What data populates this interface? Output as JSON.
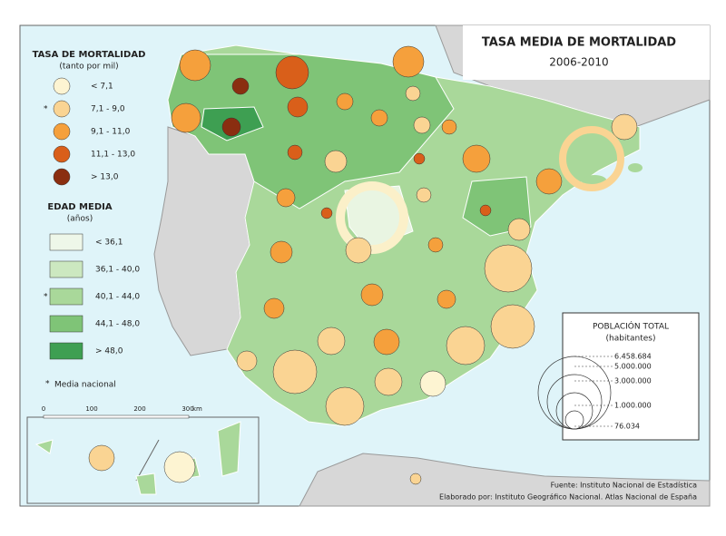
{
  "header": {
    "title": "TASA MEDIA DE MORTALIDAD",
    "period": "2006-2010"
  },
  "mortality_legend": {
    "title": "TASA DE MORTALIDAD",
    "unit": "(tanto por mil)",
    "national_mark": "*",
    "items": [
      "< 7,1",
      "7,1 - 9,0",
      "9,1 - 11,0",
      "11,1 - 13,0",
      "> 13,0"
    ]
  },
  "age_legend": {
    "title": "EDAD MEDIA",
    "unit": "(años)",
    "national_mark": "*",
    "items": [
      "< 36,1",
      "36,1 - 40,0",
      "40,1 - 44,0",
      "44,1 - 48,0",
      "> 48,0"
    ],
    "note_mark": "*",
    "note": "Media nacional"
  },
  "scale_bar": {
    "labels": [
      "0",
      "100",
      "200",
      "300"
    ],
    "unit": "km"
  },
  "population_legend": {
    "title": "POBLACIÓN TOTAL",
    "unit": "(habitantes)",
    "items": [
      "6.458.684",
      "5.000.000",
      "3.000.000",
      "1.000.000",
      "76.034"
    ]
  },
  "footer": {
    "source": "Fuente: Instituto Nacional de Estadística",
    "credit": "Elaborado por: Instituto Geográfico Nacional. Atlas Nacional de España"
  }
}
